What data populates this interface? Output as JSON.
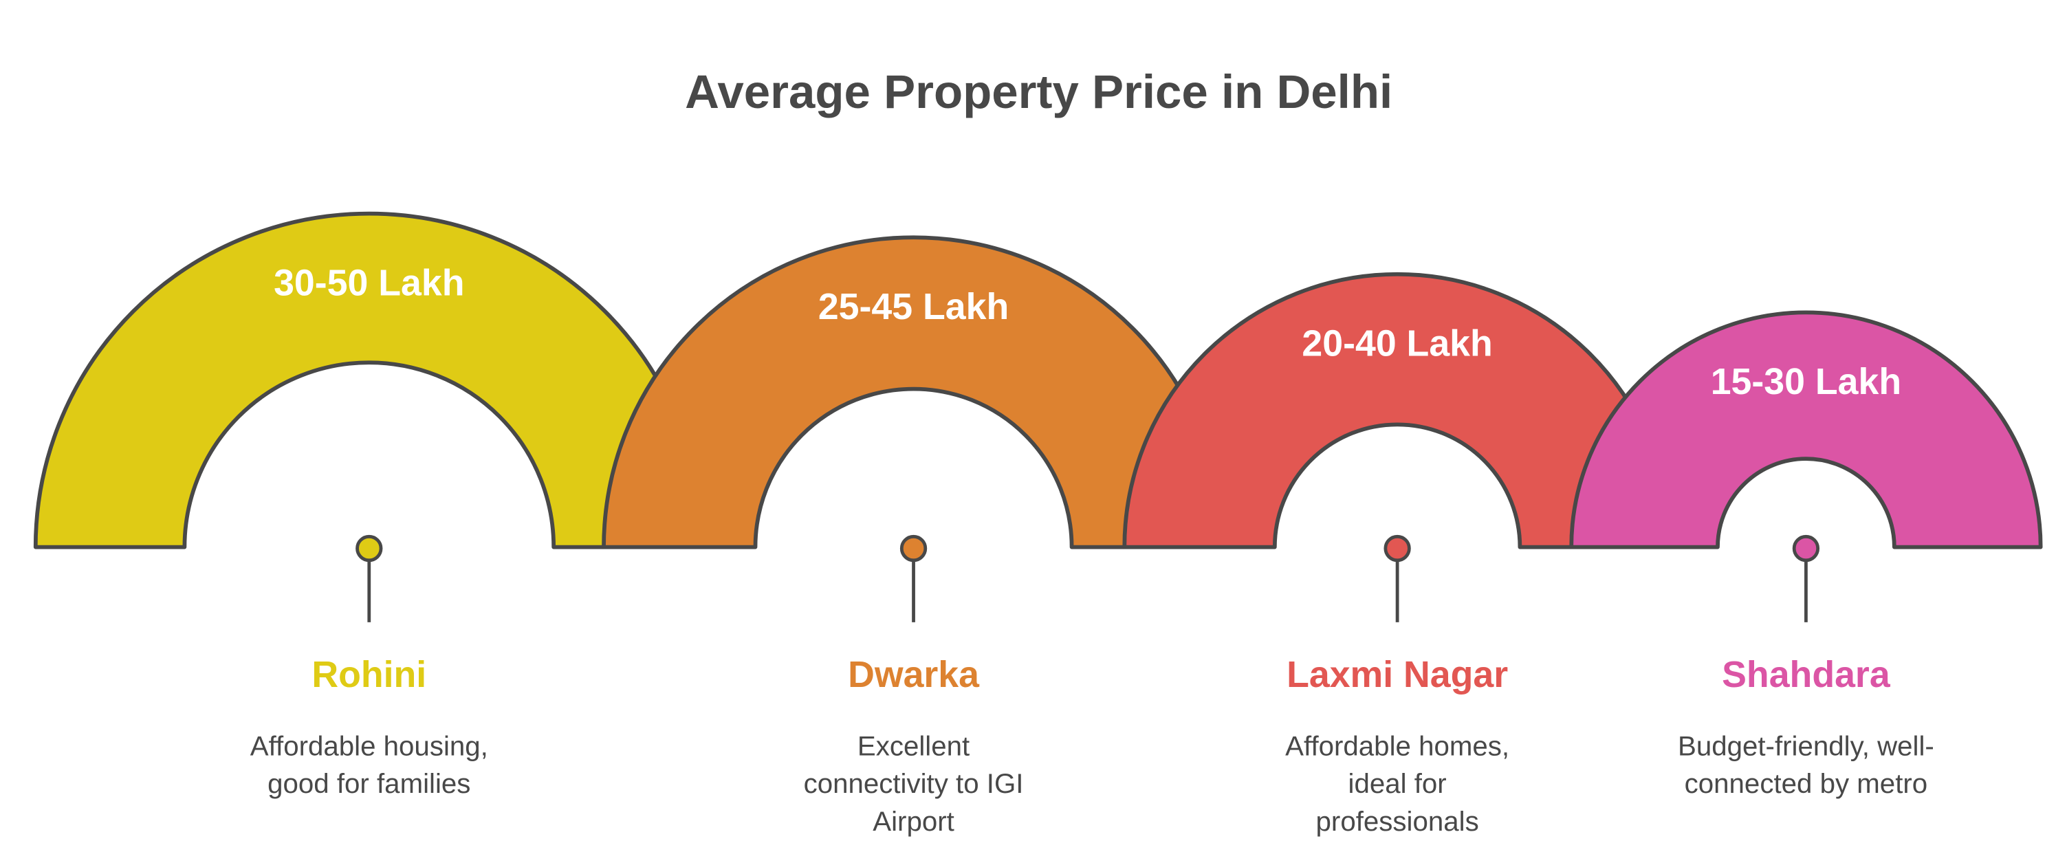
{
  "title": "Average Property Price in Delhi",
  "areas": [
    {
      "name": "Rohini",
      "price": "30-50 Lakh",
      "color": "#DFCB15",
      "description": [
        "Affordable housing,",
        "good for families"
      ]
    },
    {
      "name": "Dwarka",
      "price": "25-45 Lakh",
      "color": "#DD8230",
      "description": [
        "Excellent",
        "connectivity to IGI",
        "Airport"
      ]
    },
    {
      "name": "Laxmi Nagar",
      "price": "20-40 Lakh",
      "color": "#E25752",
      "description": [
        "Affordable homes,",
        "ideal for",
        "professionals"
      ]
    },
    {
      "name": "Shahdara",
      "price": "15-30 Lakh",
      "color": "#DB55A5",
      "description": [
        "Budget-friendly, well-",
        "connected by metro"
      ]
    }
  ]
}
